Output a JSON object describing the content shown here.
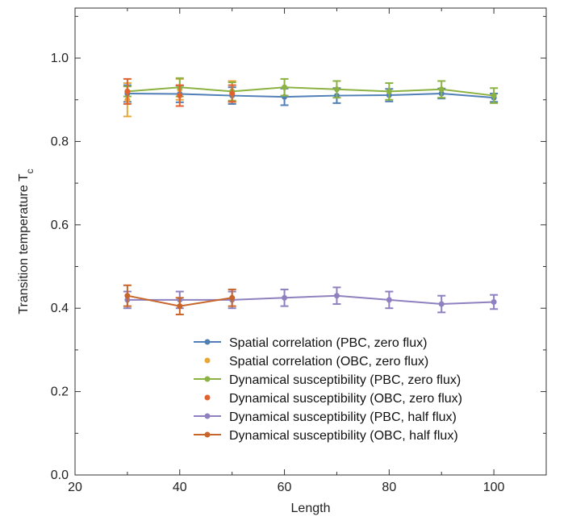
{
  "chart_data": {
    "type": "line",
    "title": "",
    "xlabel": "Length",
    "ylabel": "Transition temperature T",
    "ylabel_subscript": "c",
    "xlim": [
      20,
      110
    ],
    "ylim": [
      0.0,
      1.12
    ],
    "xticks": [
      20,
      40,
      60,
      80,
      100
    ],
    "yticks": [
      0.0,
      0.2,
      0.4,
      0.6,
      0.8,
      1.0
    ],
    "xtick_labels": [
      "20",
      "40",
      "60",
      "80",
      "100"
    ],
    "ytick_labels": [
      "0.0",
      "0.2",
      "0.4",
      "0.6",
      "0.8",
      "1.0"
    ],
    "grid": false,
    "legend_position": "bottom-right",
    "series": [
      {
        "name": "Spatial correlation",
        "condition": "(PBC, zero flux)",
        "color": "#4f7fb6",
        "connected": true,
        "x": [
          30,
          40,
          50,
          60,
          70,
          80,
          90,
          100
        ],
        "y": [
          0.915,
          0.914,
          0.91,
          0.907,
          0.91,
          0.911,
          0.915,
          0.905
        ],
        "err": [
          0.02,
          0.02,
          0.02,
          0.02,
          0.018,
          0.015,
          0.012,
          0.01
        ]
      },
      {
        "name": "Spatial correlation",
        "condition": "(OBC, zero flux)",
        "color": "#e8a838",
        "connected": false,
        "x": [
          30,
          40,
          50
        ],
        "y": [
          0.9,
          0.925,
          0.92
        ],
        "err": [
          0.04,
          0.025,
          0.025
        ]
      },
      {
        "name": "Dynamical susceptibility",
        "condition": "(PBC, zero flux)",
        "color": "#8bb242",
        "connected": true,
        "x": [
          30,
          40,
          50,
          60,
          70,
          80,
          90,
          100
        ],
        "y": [
          0.92,
          0.93,
          0.92,
          0.93,
          0.925,
          0.92,
          0.925,
          0.91
        ],
        "err": [
          0.012,
          0.022,
          0.022,
          0.02,
          0.02,
          0.02,
          0.02,
          0.018
        ]
      },
      {
        "name": "Dynamical susceptibility",
        "condition": "(OBC, zero flux)",
        "color": "#e3612f",
        "connected": false,
        "x": [
          30,
          40,
          50
        ],
        "y": [
          0.92,
          0.91,
          0.915
        ],
        "err": [
          0.03,
          0.025,
          0.02
        ]
      },
      {
        "name": "Dynamical susceptibility",
        "condition": "(PBC, half flux)",
        "color": "#8f80bf",
        "connected": true,
        "x": [
          30,
          40,
          50,
          60,
          70,
          80,
          90,
          100
        ],
        "y": [
          0.42,
          0.42,
          0.42,
          0.425,
          0.43,
          0.42,
          0.41,
          0.415
        ],
        "err": [
          0.02,
          0.02,
          0.02,
          0.02,
          0.02,
          0.02,
          0.02,
          0.017
        ]
      },
      {
        "name": "Dynamical susceptibility",
        "condition": "(OBC, half flux)",
        "color": "#c8652a",
        "connected": true,
        "x": [
          30,
          40,
          50
        ],
        "y": [
          0.43,
          0.405,
          0.425
        ],
        "err": [
          0.025,
          0.02,
          0.02
        ]
      }
    ]
  }
}
